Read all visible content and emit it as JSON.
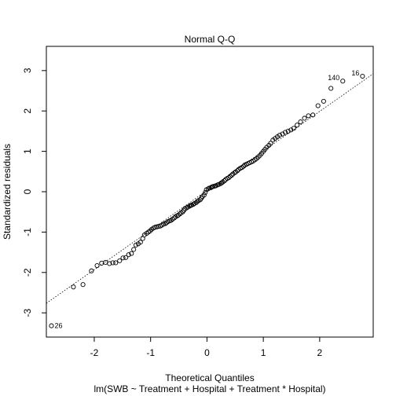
{
  "chart_data": {
    "type": "scatter",
    "title": "Normal Q-Q",
    "xlabel": "Theoretical Quantiles",
    "subtitle": "lm(SWB ~ Treatment + Hospital + Treatment * Hospital)",
    "ylabel": "Standardized residuals",
    "xlim": [
      -2.85,
      2.95
    ],
    "ylim": [
      -3.6,
      3.6
    ],
    "x_ticks": [
      -2,
      -1,
      0,
      1,
      2
    ],
    "y_ticks": [
      -3,
      -2,
      -1,
      0,
      1,
      2,
      3
    ],
    "reference_line": {
      "slope": 0.98,
      "intercept": 0.03,
      "style": "dotted"
    },
    "labeled_points": [
      {
        "label": "26",
        "x": -2.76,
        "y": -3.32
      },
      {
        "label": "140",
        "x": 2.41,
        "y": 2.74
      },
      {
        "label": "16",
        "x": 2.76,
        "y": 2.86
      }
    ],
    "points": [
      [
        -2.76,
        -3.32
      ],
      [
        -2.37,
        -2.36
      ],
      [
        -2.2,
        -2.3
      ],
      [
        -2.05,
        -1.96
      ],
      [
        -1.95,
        -1.83
      ],
      [
        -1.87,
        -1.77
      ],
      [
        -1.8,
        -1.75
      ],
      [
        -1.73,
        -1.78
      ],
      [
        -1.67,
        -1.76
      ],
      [
        -1.62,
        -1.76
      ],
      [
        -1.55,
        -1.71
      ],
      [
        -1.49,
        -1.64
      ],
      [
        -1.44,
        -1.63
      ],
      [
        -1.39,
        -1.56
      ],
      [
        -1.34,
        -1.53
      ],
      [
        -1.3,
        -1.43
      ],
      [
        -1.26,
        -1.32
      ],
      [
        -1.22,
        -1.29
      ],
      [
        -1.18,
        -1.25
      ],
      [
        -1.14,
        -1.16
      ],
      [
        -1.11,
        -1.07
      ],
      [
        -1.07,
        -1.03
      ],
      [
        -1.04,
        -1.0
      ],
      [
        -1.01,
        -0.97
      ],
      [
        -0.98,
        -0.93
      ],
      [
        -0.95,
        -0.9
      ],
      [
        -0.92,
        -0.88
      ],
      [
        -0.89,
        -0.87
      ],
      [
        -0.86,
        -0.86
      ],
      [
        -0.83,
        -0.85
      ],
      [
        -0.8,
        -0.83
      ],
      [
        -0.77,
        -0.8
      ],
      [
        -0.74,
        -0.79
      ],
      [
        -0.72,
        -0.77
      ],
      [
        -0.69,
        -0.74
      ],
      [
        -0.66,
        -0.72
      ],
      [
        -0.64,
        -0.71
      ],
      [
        -0.61,
        -0.68
      ],
      [
        -0.58,
        -0.65
      ],
      [
        -0.56,
        -0.62
      ],
      [
        -0.53,
        -0.6
      ],
      [
        -0.51,
        -0.58
      ],
      [
        -0.48,
        -0.55
      ],
      [
        -0.46,
        -0.52
      ],
      [
        -0.43,
        -0.5
      ],
      [
        -0.41,
        -0.46
      ],
      [
        -0.39,
        -0.42
      ],
      [
        -0.36,
        -0.4
      ],
      [
        -0.34,
        -0.38
      ],
      [
        -0.31,
        -0.36
      ],
      [
        -0.29,
        -0.34
      ],
      [
        -0.27,
        -0.33
      ],
      [
        -0.24,
        -0.31
      ],
      [
        -0.22,
        -0.29
      ],
      [
        -0.19,
        -0.27
      ],
      [
        -0.17,
        -0.24
      ],
      [
        -0.15,
        -0.22
      ],
      [
        -0.12,
        -0.2
      ],
      [
        -0.1,
        -0.16
      ],
      [
        -0.08,
        -0.12
      ],
      [
        -0.05,
        -0.08
      ],
      [
        -0.03,
        -0.02
      ],
      [
        -0.01,
        0.05
      ],
      [
        0.02,
        0.07
      ],
      [
        0.04,
        0.09
      ],
      [
        0.07,
        0.1
      ],
      [
        0.09,
        0.12
      ],
      [
        0.11,
        0.13
      ],
      [
        0.14,
        0.14
      ],
      [
        0.16,
        0.15
      ],
      [
        0.19,
        0.17
      ],
      [
        0.21,
        0.18
      ],
      [
        0.24,
        0.2
      ],
      [
        0.26,
        0.22
      ],
      [
        0.28,
        0.24
      ],
      [
        0.31,
        0.27
      ],
      [
        0.33,
        0.3
      ],
      [
        0.36,
        0.33
      ],
      [
        0.39,
        0.35
      ],
      [
        0.41,
        0.38
      ],
      [
        0.44,
        0.41
      ],
      [
        0.46,
        0.44
      ],
      [
        0.49,
        0.47
      ],
      [
        0.51,
        0.49
      ],
      [
        0.54,
        0.52
      ],
      [
        0.56,
        0.55
      ],
      [
        0.59,
        0.58
      ],
      [
        0.62,
        0.6
      ],
      [
        0.65,
        0.63
      ],
      [
        0.67,
        0.66
      ],
      [
        0.7,
        0.68
      ],
      [
        0.73,
        0.7
      ],
      [
        0.76,
        0.72
      ],
      [
        0.79,
        0.74
      ],
      [
        0.82,
        0.76
      ],
      [
        0.85,
        0.79
      ],
      [
        0.88,
        0.82
      ],
      [
        0.91,
        0.86
      ],
      [
        0.94,
        0.9
      ],
      [
        0.97,
        0.95
      ],
      [
        1.0,
        1.0
      ],
      [
        1.03,
        1.05
      ],
      [
        1.06,
        1.1
      ],
      [
        1.1,
        1.15
      ],
      [
        1.13,
        1.2
      ],
      [
        1.17,
        1.28
      ],
      [
        1.21,
        1.32
      ],
      [
        1.25,
        1.36
      ],
      [
        1.29,
        1.4
      ],
      [
        1.34,
        1.43
      ],
      [
        1.39,
        1.47
      ],
      [
        1.44,
        1.5
      ],
      [
        1.49,
        1.53
      ],
      [
        1.54,
        1.57
      ],
      [
        1.6,
        1.65
      ],
      [
        1.66,
        1.73
      ],
      [
        1.73,
        1.82
      ],
      [
        1.8,
        1.88
      ],
      [
        1.88,
        1.9
      ],
      [
        1.97,
        2.13
      ],
      [
        2.07,
        2.24
      ],
      [
        2.2,
        2.56
      ],
      [
        2.41,
        2.74
      ],
      [
        2.76,
        2.86
      ]
    ]
  }
}
